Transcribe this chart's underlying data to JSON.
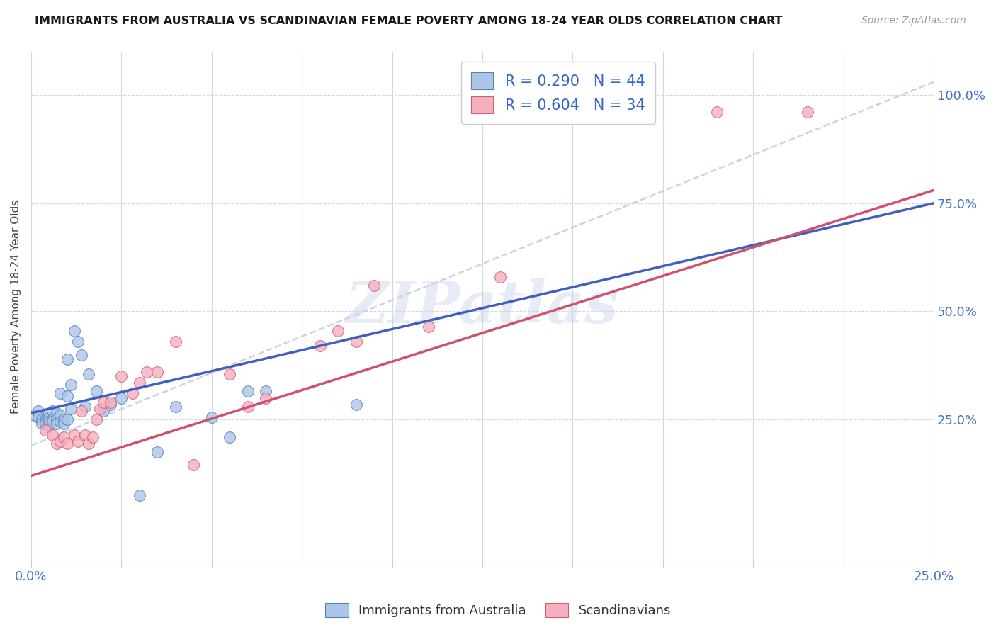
{
  "title": "IMMIGRANTS FROM AUSTRALIA VS SCANDINAVIAN FEMALE POVERTY AMONG 18-24 YEAR OLDS CORRELATION CHART",
  "source": "Source: ZipAtlas.com",
  "ylabel": "Female Poverty Among 18-24 Year Olds",
  "xlim": [
    0.0,
    0.25
  ],
  "ylim": [
    -0.08,
    1.1
  ],
  "yticks_right": [
    0.25,
    0.5,
    0.75,
    1.0
  ],
  "ytick_labels_right": [
    "25.0%",
    "50.0%",
    "75.0%",
    "100.0%"
  ],
  "blue_color": "#adc6e8",
  "pink_color": "#f5b0c0",
  "blue_edge_color": "#5580c0",
  "pink_edge_color": "#d06070",
  "blue_line_color": "#4060c0",
  "pink_line_color": "#d05070",
  "dash_color": "#c0cce0",
  "watermark": "ZIPatlas",
  "blue_x": [
    0.001,
    0.002,
    0.002,
    0.003,
    0.003,
    0.004,
    0.004,
    0.004,
    0.005,
    0.005,
    0.005,
    0.006,
    0.006,
    0.006,
    0.007,
    0.007,
    0.007,
    0.008,
    0.008,
    0.008,
    0.009,
    0.009,
    0.01,
    0.01,
    0.01,
    0.011,
    0.011,
    0.012,
    0.013,
    0.014,
    0.015,
    0.016,
    0.018,
    0.02,
    0.022,
    0.025,
    0.03,
    0.035,
    0.04,
    0.05,
    0.055,
    0.06,
    0.065,
    0.09
  ],
  "blue_y": [
    0.26,
    0.27,
    0.255,
    0.25,
    0.24,
    0.25,
    0.245,
    0.24,
    0.255,
    0.245,
    0.235,
    0.27,
    0.25,
    0.245,
    0.265,
    0.25,
    0.24,
    0.26,
    0.31,
    0.245,
    0.25,
    0.24,
    0.39,
    0.305,
    0.25,
    0.33,
    0.275,
    0.455,
    0.43,
    0.4,
    0.28,
    0.355,
    0.315,
    0.27,
    0.285,
    0.3,
    0.075,
    0.175,
    0.28,
    0.255,
    0.21,
    0.315,
    0.315,
    0.285
  ],
  "pink_x": [
    0.004,
    0.006,
    0.007,
    0.008,
    0.009,
    0.01,
    0.012,
    0.013,
    0.014,
    0.015,
    0.016,
    0.017,
    0.018,
    0.019,
    0.02,
    0.022,
    0.025,
    0.028,
    0.03,
    0.032,
    0.035,
    0.04,
    0.045,
    0.055,
    0.06,
    0.065,
    0.08,
    0.085,
    0.09,
    0.095,
    0.11,
    0.13,
    0.19,
    0.215
  ],
  "pink_y": [
    0.225,
    0.215,
    0.195,
    0.2,
    0.21,
    0.195,
    0.215,
    0.2,
    0.27,
    0.215,
    0.195,
    0.21,
    0.25,
    0.275,
    0.29,
    0.29,
    0.35,
    0.31,
    0.335,
    0.36,
    0.36,
    0.43,
    0.145,
    0.355,
    0.28,
    0.3,
    0.42,
    0.455,
    0.43,
    0.56,
    0.465,
    0.58,
    0.96,
    0.96
  ],
  "blue_line_x0": 0.0,
  "blue_line_x1": 0.25,
  "blue_line_y0": 0.265,
  "blue_line_y1": 0.75,
  "pink_line_x0": 0.0,
  "pink_line_x1": 0.25,
  "pink_line_y0": 0.12,
  "pink_line_y1": 0.78,
  "dash_line_x0": 0.0,
  "dash_line_x1": 0.25,
  "dash_line_y0": 0.19,
  "dash_line_y1": 1.03
}
